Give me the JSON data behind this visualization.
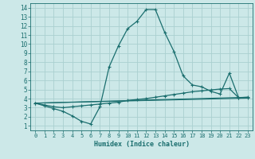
{
  "xlabel": "Humidex (Indice chaleur)",
  "bg_color": "#cce8e8",
  "grid_color": "#aad0d0",
  "line_color": "#1a6e6e",
  "xlim": [
    -0.5,
    23.5
  ],
  "ylim": [
    0.5,
    14.5
  ],
  "xticks": [
    0,
    1,
    2,
    3,
    4,
    5,
    6,
    7,
    8,
    9,
    10,
    11,
    12,
    13,
    14,
    15,
    16,
    17,
    18,
    19,
    20,
    21,
    22,
    23
  ],
  "yticks": [
    1,
    2,
    3,
    4,
    5,
    6,
    7,
    8,
    9,
    10,
    11,
    12,
    13,
    14
  ],
  "line1_x": [
    0,
    1,
    2,
    3,
    4,
    5,
    6,
    7,
    8,
    9,
    10,
    11,
    12,
    13,
    14,
    15,
    16,
    17,
    18,
    19,
    20,
    21,
    22,
    23
  ],
  "line1_y": [
    3.5,
    3.2,
    2.9,
    2.6,
    2.1,
    1.5,
    1.2,
    3.1,
    7.5,
    9.8,
    11.7,
    12.5,
    13.8,
    13.8,
    11.3,
    9.2,
    6.5,
    5.5,
    5.3,
    4.8,
    4.5,
    6.8,
    4.1,
    4.1
  ],
  "line2_x": [
    0,
    1,
    2,
    3,
    4,
    5,
    6,
    7,
    8,
    9,
    10,
    11,
    12,
    13,
    14,
    15,
    16,
    17,
    18,
    19,
    20,
    21,
    22,
    23
  ],
  "line2_y": [
    3.5,
    3.3,
    3.1,
    3.0,
    3.1,
    3.2,
    3.3,
    3.4,
    3.5,
    3.6,
    3.8,
    3.9,
    4.0,
    4.15,
    4.3,
    4.45,
    4.6,
    4.75,
    4.85,
    4.95,
    5.05,
    5.1,
    4.1,
    4.15
  ],
  "line3_x": [
    0,
    23
  ],
  "line3_y": [
    3.5,
    4.15
  ],
  "line4_x": [
    0,
    23
  ],
  "line4_y": [
    3.5,
    4.05
  ]
}
